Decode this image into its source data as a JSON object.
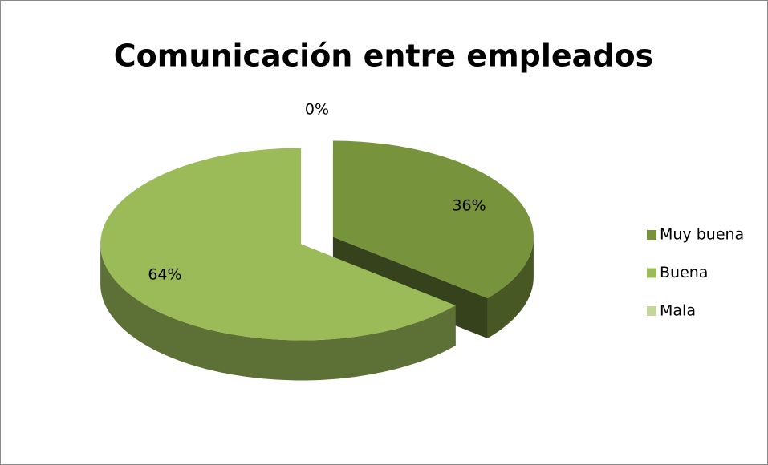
{
  "chart_data": {
    "type": "pie",
    "title": "Comunicación entre empleados",
    "categories": [
      "Muy buena",
      "Buena",
      "Mala"
    ],
    "values": [
      36,
      64,
      0
    ],
    "value_labels": [
      "36%",
      "64%",
      "0%"
    ],
    "colors": [
      "#77933c",
      "#9bbb59",
      "#c3d69b"
    ],
    "legend": "right"
  }
}
